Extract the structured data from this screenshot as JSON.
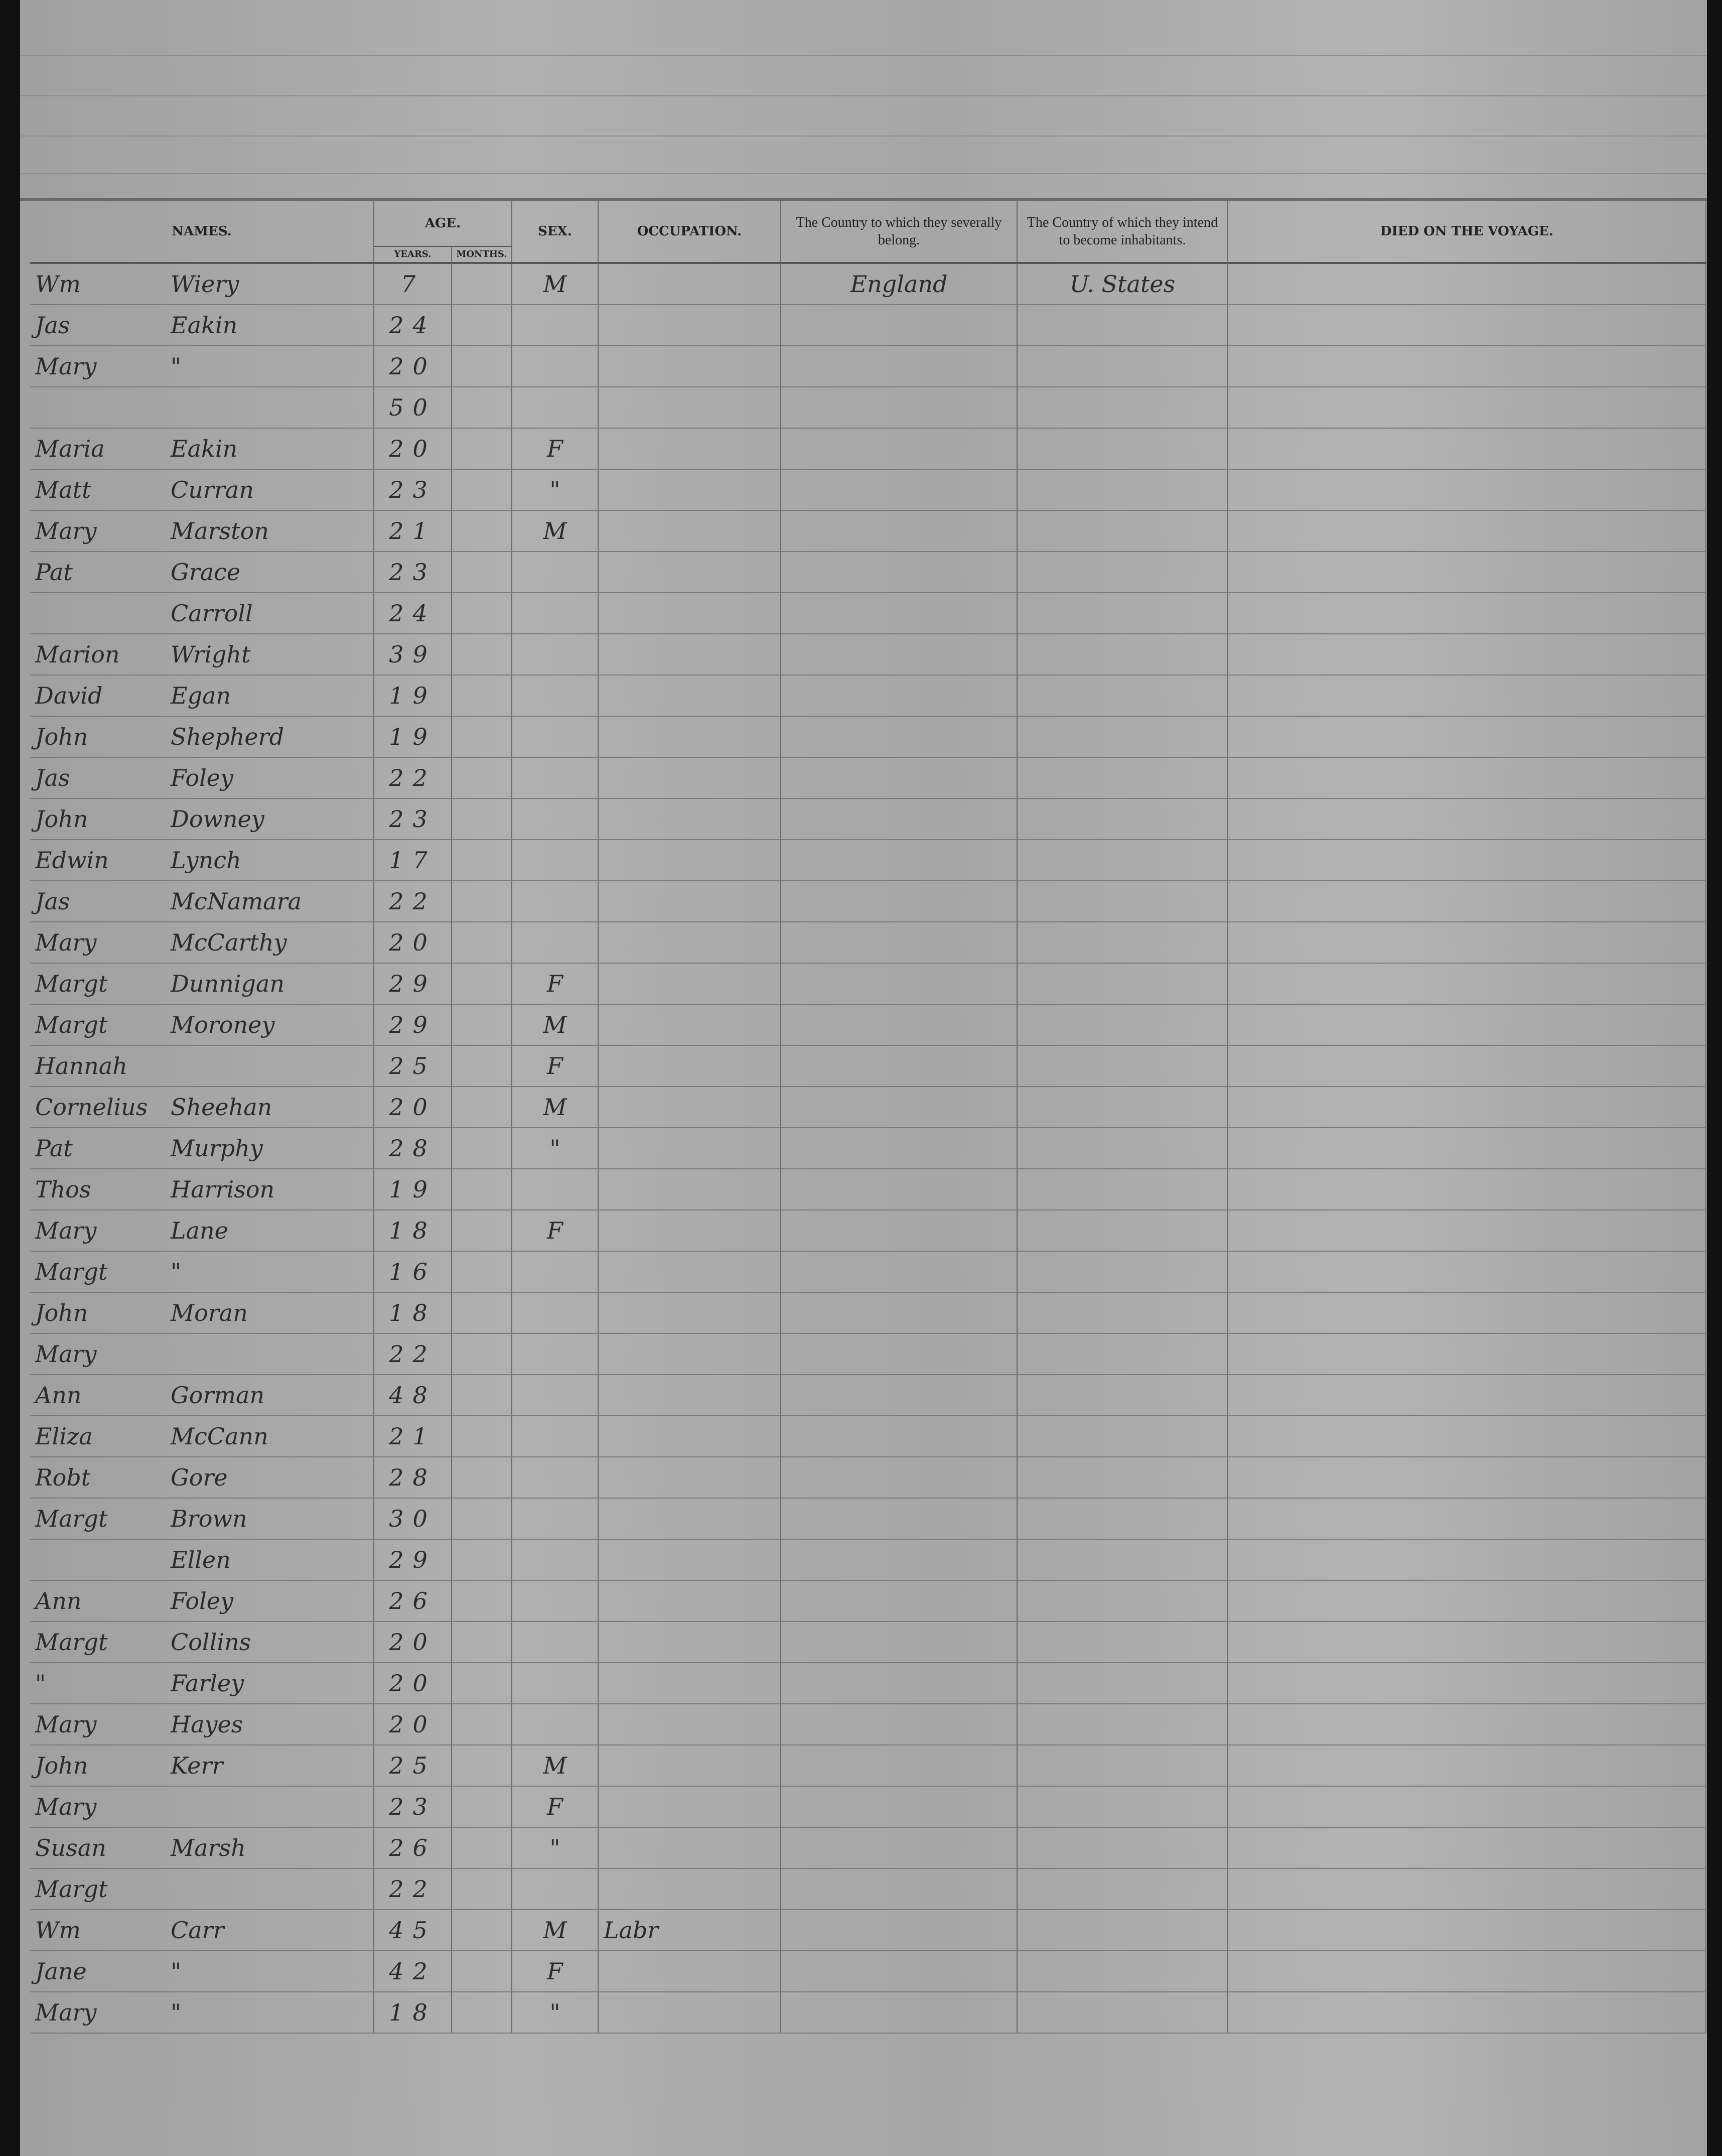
{
  "headers": {
    "names": "NAMES.",
    "age": "AGE.",
    "years": "YEARS.",
    "months": "MONTHS.",
    "sex": "SEX.",
    "occupation": "OCCUPATION.",
    "country_belong": "The Country to which they severally belong.",
    "country_inhabit": "The Country of which they intend to become inhabitants.",
    "died": "DIED ON THE VOYAGE."
  },
  "rows": [
    {
      "first": "Wm",
      "last": "Wiery",
      "years": "7",
      "sex": "M",
      "occupation": "",
      "belong": "England",
      "inhabit": "U. States"
    },
    {
      "first": "Jas",
      "last": "Eakin",
      "years": "24",
      "sex": "",
      "occupation": "",
      "belong": "",
      "inhabit": ""
    },
    {
      "first": "Mary",
      "last": "\"",
      "years": "20",
      "sex": "",
      "occupation": "",
      "belong": "",
      "inhabit": ""
    },
    {
      "first": "",
      "last": "",
      "years": "50",
      "sex": "",
      "occupation": "",
      "belong": "",
      "inhabit": ""
    },
    {
      "first": "Maria",
      "last": "Eakin",
      "years": "20",
      "sex": "F",
      "occupation": "",
      "belong": "",
      "inhabit": ""
    },
    {
      "first": "Matt",
      "last": "Curran",
      "years": "23",
      "sex": "\"",
      "occupation": "",
      "belong": "",
      "inhabit": ""
    },
    {
      "first": "Mary",
      "last": "Marston",
      "years": "21",
      "sex": "M",
      "occupation": "",
      "belong": "",
      "inhabit": ""
    },
    {
      "first": "Pat",
      "last": "Grace",
      "years": "23",
      "sex": "",
      "occupation": "",
      "belong": "",
      "inhabit": ""
    },
    {
      "first": "",
      "last": "Carroll",
      "years": "24",
      "sex": "",
      "occupation": "",
      "belong": "",
      "inhabit": ""
    },
    {
      "first": "Marion",
      "last": "Wright",
      "years": "39",
      "sex": "",
      "occupation": "",
      "belong": "",
      "inhabit": ""
    },
    {
      "first": "David",
      "last": "Egan",
      "years": "19",
      "sex": "",
      "occupation": "",
      "belong": "",
      "inhabit": ""
    },
    {
      "first": "John",
      "last": "Shepherd",
      "years": "19",
      "sex": "",
      "occupation": "",
      "belong": "",
      "inhabit": ""
    },
    {
      "first": "Jas",
      "last": "Foley",
      "years": "22",
      "sex": "",
      "occupation": "",
      "belong": "",
      "inhabit": ""
    },
    {
      "first": "John",
      "last": "Downey",
      "years": "23",
      "sex": "",
      "occupation": "",
      "belong": "",
      "inhabit": ""
    },
    {
      "first": "Edwin",
      "last": "Lynch",
      "years": "17",
      "sex": "",
      "occupation": "",
      "belong": "",
      "inhabit": ""
    },
    {
      "first": "Jas",
      "last": "McNamara",
      "years": "22",
      "sex": "",
      "occupation": "",
      "belong": "",
      "inhabit": ""
    },
    {
      "first": "Mary",
      "last": "McCarthy",
      "years": "20",
      "sex": "",
      "occupation": "",
      "belong": "",
      "inhabit": ""
    },
    {
      "first": "Margt",
      "last": "Dunnigan",
      "years": "29",
      "sex": "F",
      "occupation": "",
      "belong": "",
      "inhabit": ""
    },
    {
      "first": "Margt",
      "last": "Moroney",
      "years": "29",
      "sex": "M",
      "occupation": "",
      "belong": "",
      "inhabit": ""
    },
    {
      "first": "Hannah",
      "last": "",
      "years": "25",
      "sex": "F",
      "occupation": "",
      "belong": "",
      "inhabit": ""
    },
    {
      "first": "Cornelius",
      "last": "Sheehan",
      "years": "20",
      "sex": "M",
      "occupation": "",
      "belong": "",
      "inhabit": ""
    },
    {
      "first": "Pat",
      "last": "Murphy",
      "years": "28",
      "sex": "\"",
      "occupation": "",
      "belong": "",
      "inhabit": ""
    },
    {
      "first": "Thos",
      "last": "Harrison",
      "years": "19",
      "sex": "",
      "occupation": "",
      "belong": "",
      "inhabit": ""
    },
    {
      "first": "Mary",
      "last": "Lane",
      "years": "18",
      "sex": "F",
      "occupation": "",
      "belong": "",
      "inhabit": ""
    },
    {
      "first": "Margt",
      "last": "\"",
      "years": "16",
      "sex": "",
      "occupation": "",
      "belong": "",
      "inhabit": ""
    },
    {
      "first": "John",
      "last": "Moran",
      "years": "18",
      "sex": "",
      "occupation": "",
      "belong": "",
      "inhabit": ""
    },
    {
      "first": "Mary",
      "last": "",
      "years": "22",
      "sex": "",
      "occupation": "",
      "belong": "",
      "inhabit": ""
    },
    {
      "first": "Ann",
      "last": "Gorman",
      "years": "48",
      "sex": "",
      "occupation": "",
      "belong": "",
      "inhabit": ""
    },
    {
      "first": "Eliza",
      "last": "McCann",
      "years": "21",
      "sex": "",
      "occupation": "",
      "belong": "",
      "inhabit": ""
    },
    {
      "first": "Robt",
      "last": "Gore",
      "years": "28",
      "sex": "",
      "occupation": "",
      "belong": "",
      "inhabit": ""
    },
    {
      "first": "Margt",
      "last": "Brown",
      "years": "30",
      "sex": "",
      "occupation": "",
      "belong": "",
      "inhabit": ""
    },
    {
      "first": "",
      "last": "Ellen",
      "years": "29",
      "sex": "",
      "occupation": "",
      "belong": "",
      "inhabit": ""
    },
    {
      "first": "Ann",
      "last": "Foley",
      "years": "26",
      "sex": "",
      "occupation": "",
      "belong": "",
      "inhabit": ""
    },
    {
      "first": "Margt",
      "last": "Collins",
      "years": "20",
      "sex": "",
      "occupation": "",
      "belong": "",
      "inhabit": ""
    },
    {
      "first": "\"",
      "last": "Farley",
      "years": "20",
      "sex": "",
      "occupation": "",
      "belong": "",
      "inhabit": ""
    },
    {
      "first": "Mary",
      "last": "Hayes",
      "years": "20",
      "sex": "",
      "occupation": "",
      "belong": "",
      "inhabit": ""
    },
    {
      "first": "John",
      "last": "Kerr",
      "years": "25",
      "sex": "M",
      "occupation": "",
      "belong": "",
      "inhabit": ""
    },
    {
      "first": "Mary",
      "last": "",
      "years": "23",
      "sex": "F",
      "occupation": "",
      "belong": "",
      "inhabit": ""
    },
    {
      "first": "Susan",
      "last": "Marsh",
      "years": "26",
      "sex": "\"",
      "occupation": "",
      "belong": "",
      "inhabit": ""
    },
    {
      "first": "Margt",
      "last": "",
      "years": "22",
      "sex": "",
      "occupation": "",
      "belong": "",
      "inhabit": ""
    },
    {
      "first": "Wm",
      "last": "Carr",
      "years": "45",
      "sex": "M",
      "occupation": "Labr",
      "belong": "",
      "inhabit": ""
    },
    {
      "first": "Jane",
      "last": "\"",
      "years": "42",
      "sex": "F",
      "occupation": "",
      "belong": "",
      "inhabit": ""
    },
    {
      "first": "Mary",
      "last": "\"",
      "years": "18",
      "sex": "\"",
      "occupation": "",
      "belong": "",
      "inhabit": ""
    }
  ]
}
